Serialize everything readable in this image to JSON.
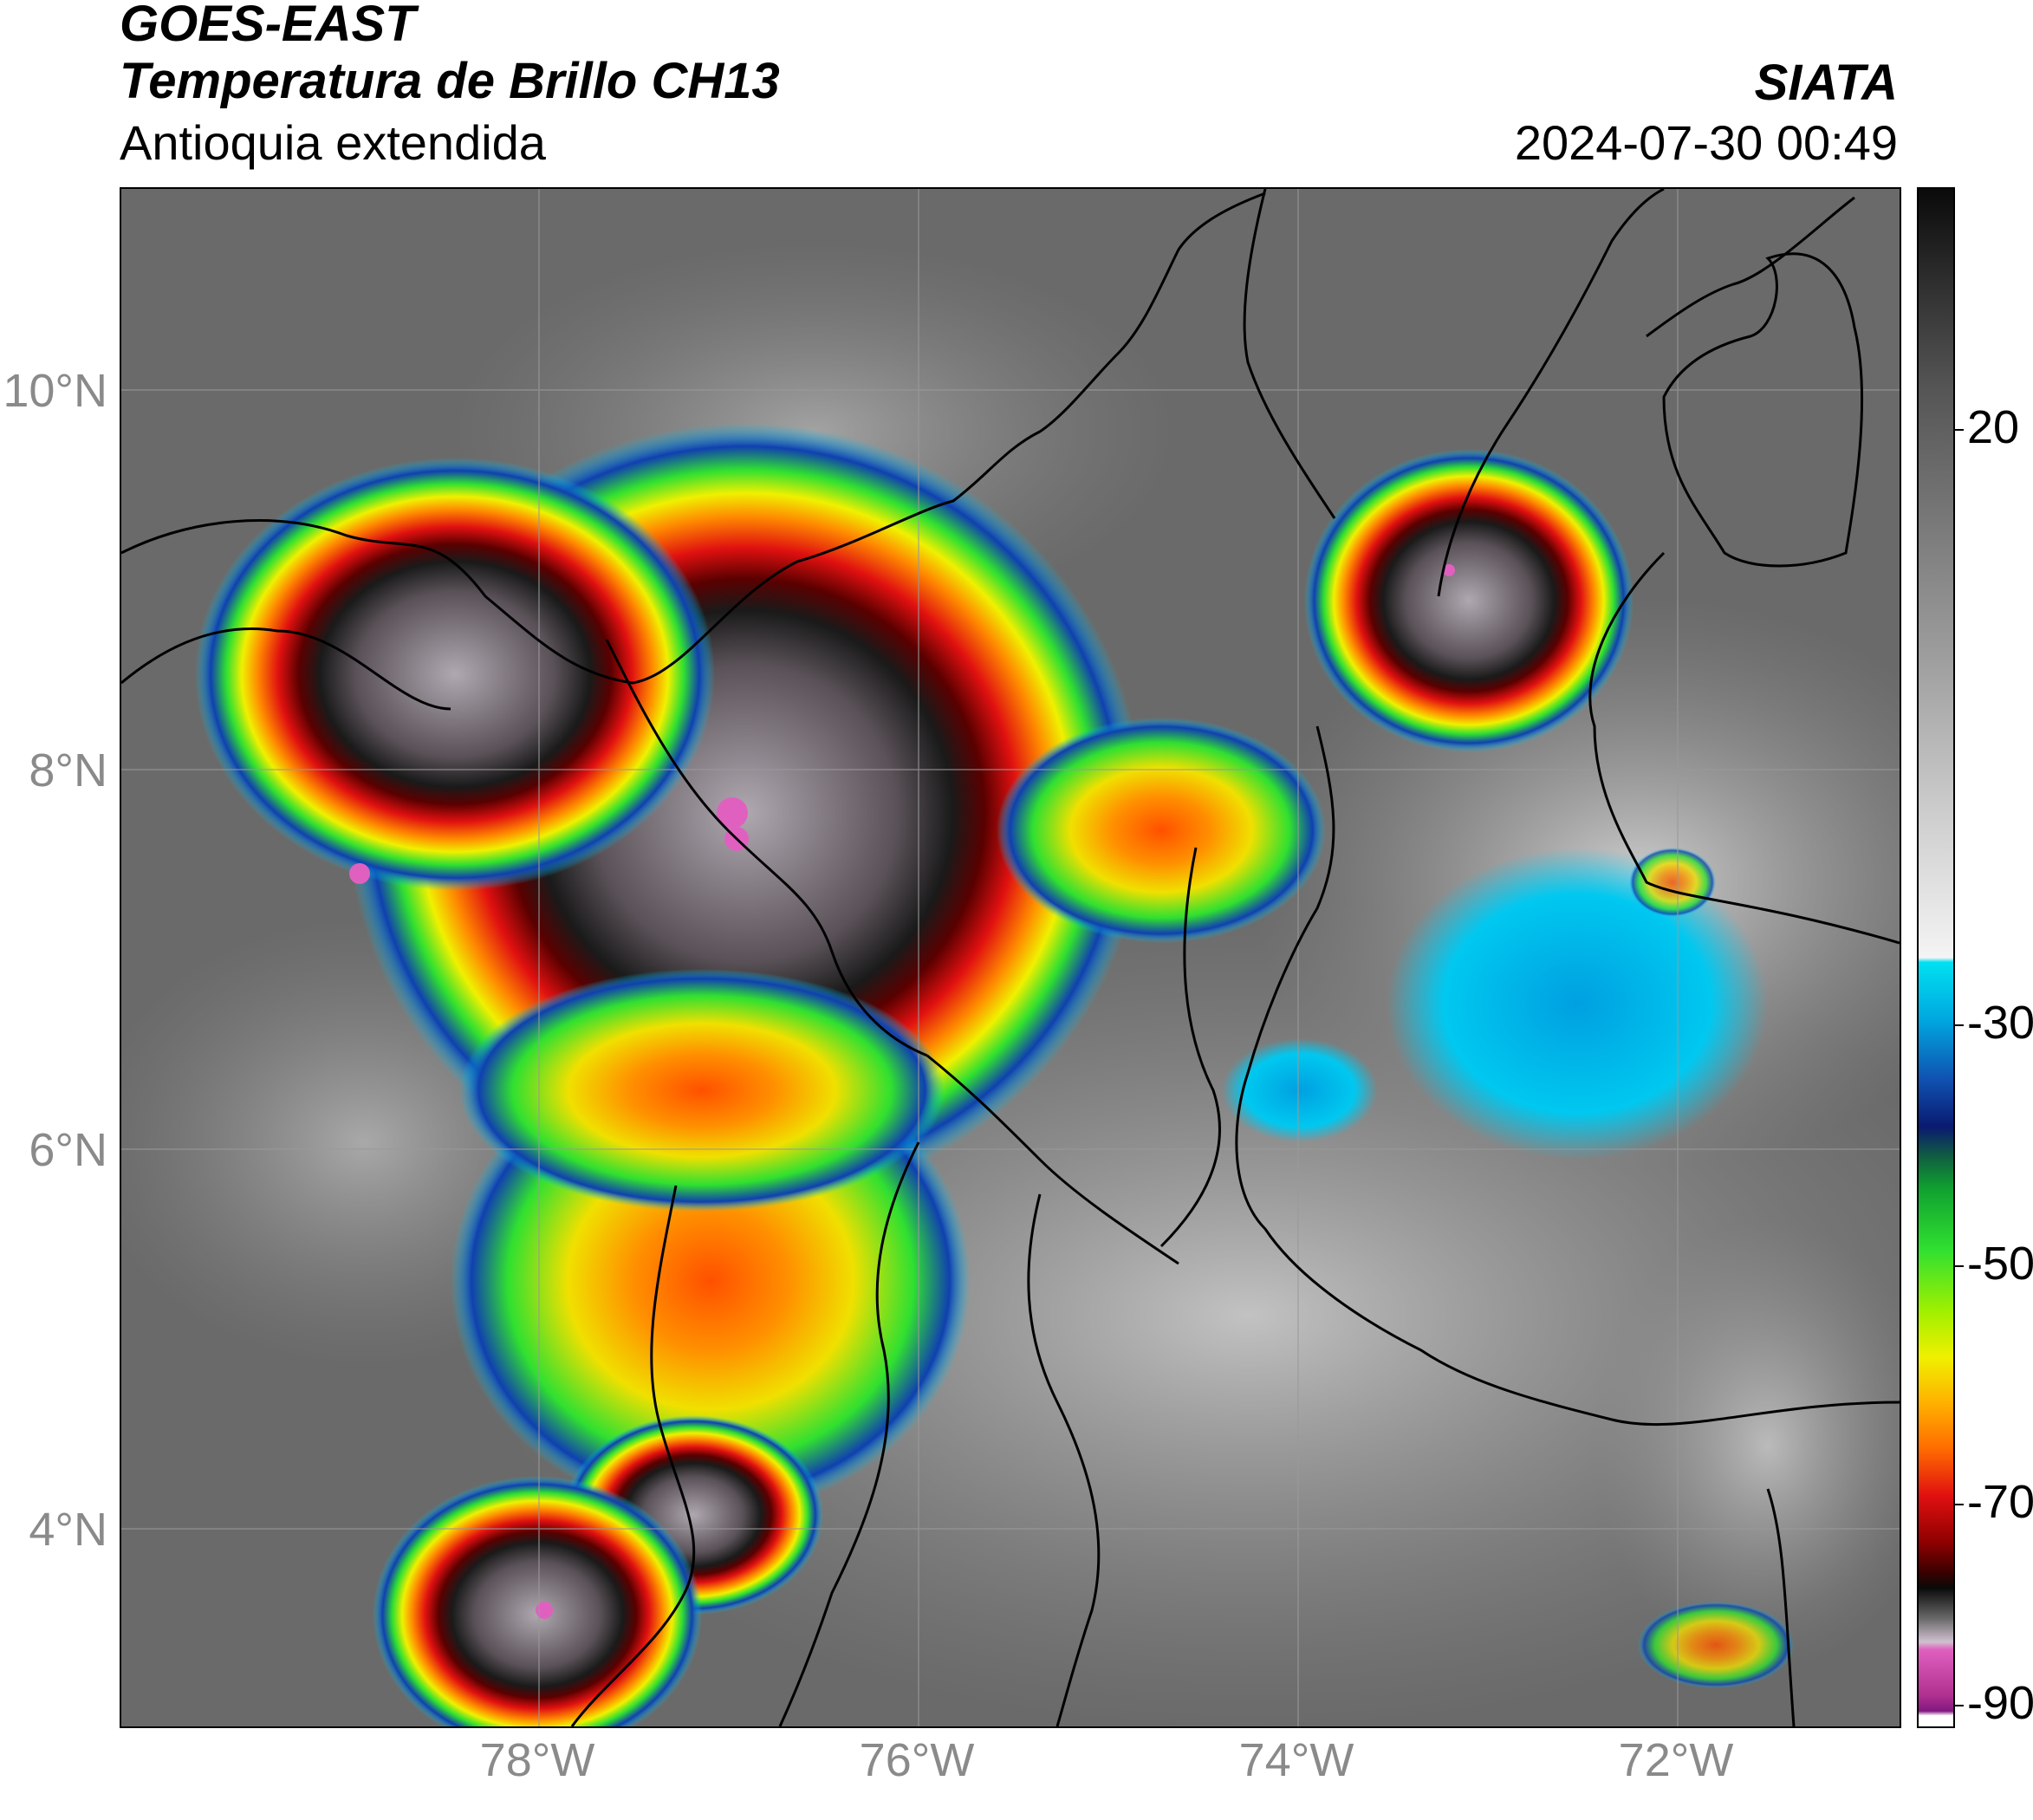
{
  "header": {
    "satellite": "GOES-EAST",
    "product": "Temperatura de Brillo CH13",
    "region": "Antioquia extendida",
    "agency": "SIATA",
    "datetime": "2024-07-30 00:49"
  },
  "map": {
    "lat_ticks": [
      "10°N",
      "8°N",
      "6°N",
      "4°N"
    ],
    "lon_ticks": [
      "78°W",
      "76°W",
      "74°W",
      "72°W"
    ],
    "gridlines": true
  },
  "colorbar": {
    "labels": [
      "20",
      "-30",
      "-50",
      "-70",
      "-90"
    ],
    "colors": {
      "warm_gray": "#5a5a5a",
      "light_gray": "#e8e8e8",
      "cyan": "#00c8f0",
      "blue": "#1040b0",
      "navy": "#0a1a70",
      "green": "#20d020",
      "yellow": "#f0f000",
      "orange": "#ff8a00",
      "red": "#e01010",
      "dark_red": "#600000",
      "black": "#0a0a0a",
      "pink": "#e060c0",
      "purple": "#801880"
    }
  }
}
